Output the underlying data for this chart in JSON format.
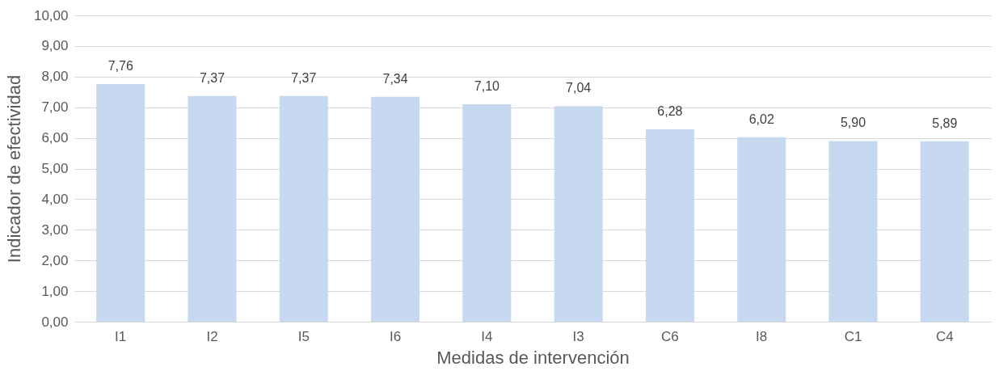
{
  "chart_data": {
    "type": "bar",
    "xlabel": "Medidas de intervención",
    "ylabel": "Indicador de efectividad",
    "categories": [
      "I1",
      "I2",
      "I5",
      "I6",
      "I4",
      "I3",
      "C6",
      "I8",
      "C1",
      "C4"
    ],
    "values": [
      7.76,
      7.37,
      7.37,
      7.34,
      7.1,
      7.04,
      6.28,
      6.02,
      5.9,
      5.89
    ],
    "value_labels": [
      "7,76",
      "7,37",
      "7,37",
      "7,34",
      "7,10",
      "7,04",
      "6,28",
      "6,02",
      "5,90",
      "5,89"
    ],
    "color": "#c6d9f1",
    "ylim": [
      0,
      10
    ],
    "yticks": [
      {
        "value": 0,
        "label": "0,00"
      },
      {
        "value": 1,
        "label": "1,00"
      },
      {
        "value": 2,
        "label": "2,00"
      },
      {
        "value": 3,
        "label": "3,00"
      },
      {
        "value": 4,
        "label": "4,00"
      },
      {
        "value": 5,
        "label": "5,00"
      },
      {
        "value": 6,
        "label": "6,00"
      },
      {
        "value": 7,
        "label": "7,00"
      },
      {
        "value": 8,
        "label": "8,00"
      },
      {
        "value": 9,
        "label": "9,00"
      },
      {
        "value": 10,
        "label": "10,00"
      }
    ],
    "grid": true
  }
}
